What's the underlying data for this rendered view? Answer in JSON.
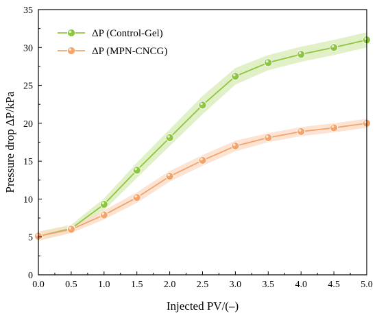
{
  "chart_data": {
    "type": "line",
    "xlabel": "Injected PV/(–)",
    "ylabel": "Pressure drop ΔP/kPa",
    "xlim": [
      0,
      5
    ],
    "ylim": [
      0,
      35
    ],
    "xticks": [
      "0.0",
      "0.5",
      "1.0",
      "1.5",
      "2.0",
      "2.5",
      "3.0",
      "3.5",
      "4.0",
      "4.5",
      "5.0"
    ],
    "yticks": [
      "0",
      "5",
      "10",
      "15",
      "20",
      "25",
      "30",
      "35"
    ],
    "grid": false,
    "legend_position": "top-left",
    "series": [
      {
        "name": "ΔP (Control-Gel)",
        "color": "#8dc63f",
        "band_color": "#d9ecb8",
        "x": [
          0,
          0.5,
          1.0,
          1.5,
          2.0,
          2.5,
          3.0,
          3.5,
          4.0,
          4.5,
          5.0
        ],
        "y": [
          5.1,
          6.1,
          9.3,
          13.8,
          18.1,
          22.4,
          26.2,
          28.0,
          29.1,
          30.0,
          31.0
        ],
        "band_halfwidth": [
          0.6,
          0.5,
          0.8,
          1.0,
          1.1,
          1.2,
          1.1,
          1.0,
          1.0,
          1.0,
          1.0
        ]
      },
      {
        "name": "ΔP (MPN-CNCG)",
        "color": "#f4a46a",
        "band_color": "#fbdcc8",
        "x": [
          0,
          0.5,
          1.0,
          1.5,
          2.0,
          2.5,
          3.0,
          3.5,
          4.0,
          4.5,
          5.0
        ],
        "y": [
          5.1,
          6.0,
          7.9,
          10.2,
          13.0,
          15.1,
          17.0,
          18.1,
          18.9,
          19.4,
          20.0
        ],
        "band_halfwidth": [
          0.6,
          0.5,
          0.6,
          0.7,
          0.7,
          0.7,
          0.7,
          0.6,
          0.6,
          0.6,
          0.6
        ]
      }
    ]
  }
}
